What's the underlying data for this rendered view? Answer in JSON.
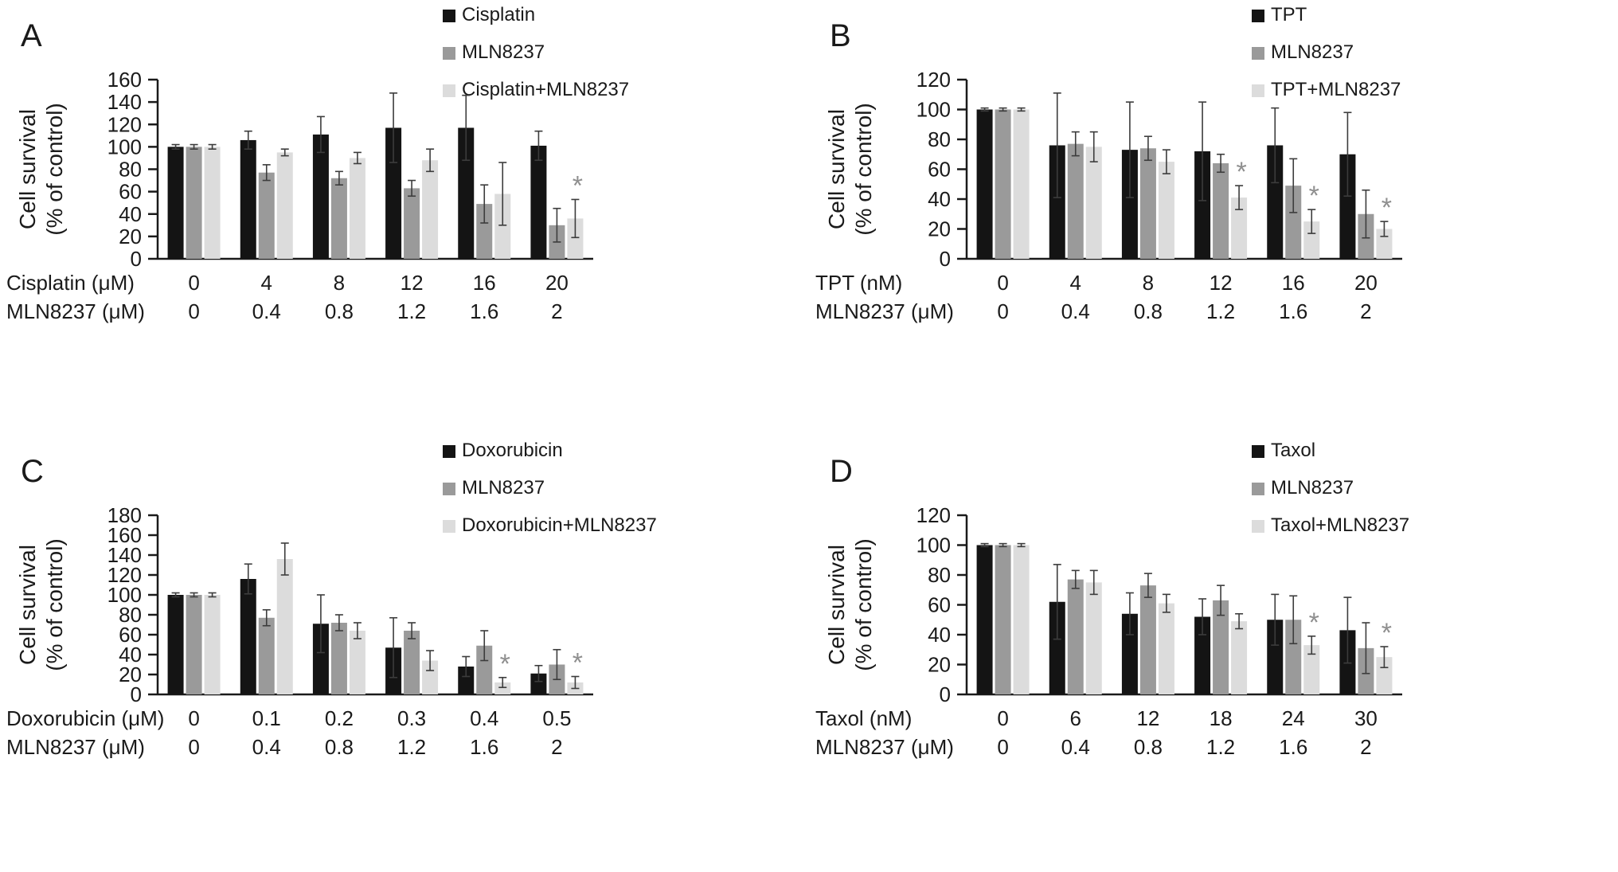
{
  "ylabel": {
    "line1": "Cell survival",
    "line2": "(% of control)"
  },
  "colors": {
    "series": [
      "#141414",
      "#9a9a9a",
      "#dcdcdc"
    ],
    "error_bar": "#3c3c3c",
    "asterisk": "#8f8f8f",
    "axis": "#1a1a1a",
    "background": "#ffffff"
  },
  "chart_data": [
    {
      "type": "bar",
      "panel": "A",
      "ylabel": "Cell survival (% of control)",
      "legend": [
        "Cisplatin",
        "MLN8237",
        "Cisplatin+MLN8237"
      ],
      "legend_position": "top-right",
      "grid": false,
      "ylim": [
        0,
        160
      ],
      "yticks": [
        0,
        20,
        40,
        60,
        80,
        100,
        120,
        140,
        160
      ],
      "x_rows": [
        {
          "label": "Cisplatin (μM)",
          "values": [
            "0",
            "4",
            "8",
            "12",
            "16",
            "20"
          ]
        },
        {
          "label": "MLN8237 (μM)",
          "values": [
            "0",
            "0.4",
            "0.8",
            "1.2",
            "1.6",
            "2"
          ]
        }
      ],
      "series": [
        {
          "name": "Cisplatin",
          "values": [
            100,
            106,
            111,
            117,
            117,
            101
          ],
          "errors": [
            2,
            8,
            16,
            31,
            29,
            13
          ],
          "asterisks": [
            false,
            false,
            false,
            false,
            false,
            false
          ]
        },
        {
          "name": "MLN8237",
          "values": [
            100,
            77,
            72,
            63,
            49,
            30
          ],
          "errors": [
            2,
            7,
            6,
            7,
            17,
            15
          ],
          "asterisks": [
            false,
            false,
            false,
            false,
            false,
            false
          ]
        },
        {
          "name": "Cisplatin+MLN8237",
          "values": [
            100,
            95,
            90,
            88,
            58,
            36
          ],
          "errors": [
            2,
            3,
            5,
            10,
            28,
            17
          ],
          "asterisks": [
            false,
            false,
            false,
            false,
            false,
            true
          ]
        }
      ]
    },
    {
      "type": "bar",
      "panel": "B",
      "ylabel": "Cell survival (% of control)",
      "legend": [
        "TPT",
        "MLN8237",
        "TPT+MLN8237"
      ],
      "legend_position": "top-right",
      "grid": false,
      "ylim": [
        0,
        120
      ],
      "yticks": [
        0,
        20,
        40,
        60,
        80,
        100,
        120
      ],
      "x_rows": [
        {
          "label": "TPT (nM)",
          "values": [
            "0",
            "4",
            "8",
            "12",
            "16",
            "20"
          ]
        },
        {
          "label": "MLN8237 (μM)",
          "values": [
            "0",
            "0.4",
            "0.8",
            "1.2",
            "1.6",
            "2"
          ]
        }
      ],
      "series": [
        {
          "name": "TPT",
          "values": [
            100,
            76,
            73,
            72,
            76,
            70
          ],
          "errors": [
            1,
            35,
            32,
            33,
            25,
            28
          ],
          "asterisks": [
            false,
            false,
            false,
            false,
            false,
            false
          ]
        },
        {
          "name": "MLN8237",
          "values": [
            100,
            77,
            74,
            64,
            49,
            30
          ],
          "errors": [
            1,
            8,
            8,
            6,
            18,
            16
          ],
          "asterisks": [
            false,
            false,
            false,
            false,
            false,
            false
          ]
        },
        {
          "name": "TPT+MLN8237",
          "values": [
            100,
            75,
            65,
            41,
            25,
            20
          ],
          "errors": [
            1,
            10,
            8,
            8,
            8,
            5
          ],
          "asterisks": [
            false,
            false,
            false,
            true,
            true,
            true
          ]
        }
      ]
    },
    {
      "type": "bar",
      "panel": "C",
      "ylabel": "Cell survival (% of control)",
      "legend": [
        "Doxorubicin",
        "MLN8237",
        "Doxorubicin+MLN8237"
      ],
      "legend_position": "top-right",
      "grid": false,
      "ylim": [
        0,
        180
      ],
      "yticks": [
        0,
        20,
        40,
        60,
        80,
        100,
        120,
        140,
        160,
        180
      ],
      "x_rows": [
        {
          "label": "Doxorubicin (μM)",
          "values": [
            "0",
            "0.1",
            "0.2",
            "0.3",
            "0.4",
            "0.5"
          ]
        },
        {
          "label": "MLN8237 (μM)",
          "values": [
            "0",
            "0.4",
            "0.8",
            "1.2",
            "1.6",
            "2"
          ]
        }
      ],
      "series": [
        {
          "name": "Doxorubicin",
          "values": [
            100,
            116,
            71,
            47,
            28,
            21
          ],
          "errors": [
            2,
            15,
            29,
            30,
            10,
            8
          ],
          "asterisks": [
            false,
            false,
            false,
            false,
            false,
            false
          ]
        },
        {
          "name": "MLN8237",
          "values": [
            100,
            77,
            72,
            64,
            49,
            30
          ],
          "errors": [
            2,
            8,
            8,
            8,
            15,
            15
          ],
          "asterisks": [
            false,
            false,
            false,
            false,
            false,
            false
          ]
        },
        {
          "name": "Doxorubicin+MLN8237",
          "values": [
            100,
            136,
            64,
            34,
            12,
            12
          ],
          "errors": [
            2,
            16,
            8,
            10,
            5,
            6
          ],
          "asterisks": [
            false,
            false,
            false,
            false,
            true,
            true
          ]
        }
      ]
    },
    {
      "type": "bar",
      "panel": "D",
      "ylabel": "Cell survival (% of control)",
      "legend": [
        "Taxol",
        "MLN8237",
        "Taxol+MLN8237"
      ],
      "legend_position": "top-right",
      "grid": false,
      "ylim": [
        0,
        120
      ],
      "yticks": [
        0,
        20,
        40,
        60,
        80,
        100,
        120
      ],
      "x_rows": [
        {
          "label": "Taxol (nM)",
          "values": [
            "0",
            "6",
            "12",
            "18",
            "24",
            "30"
          ]
        },
        {
          "label": "MLN8237 (μM)",
          "values": [
            "0",
            "0.4",
            "0.8",
            "1.2",
            "1.6",
            "2"
          ]
        }
      ],
      "series": [
        {
          "name": "Taxol",
          "values": [
            100,
            62,
            54,
            52,
            50,
            43
          ],
          "errors": [
            1,
            25,
            14,
            12,
            17,
            22
          ],
          "asterisks": [
            false,
            false,
            false,
            false,
            false,
            false
          ]
        },
        {
          "name": "MLN8237",
          "values": [
            100,
            77,
            73,
            63,
            50,
            31
          ],
          "errors": [
            1,
            6,
            8,
            10,
            16,
            17
          ],
          "asterisks": [
            false,
            false,
            false,
            false,
            false,
            false
          ]
        },
        {
          "name": "Taxol+MLN8237",
          "values": [
            100,
            75,
            61,
            49,
            33,
            25
          ],
          "errors": [
            1,
            8,
            6,
            5,
            6,
            7
          ],
          "asterisks": [
            false,
            false,
            false,
            false,
            true,
            true
          ]
        }
      ]
    }
  ]
}
